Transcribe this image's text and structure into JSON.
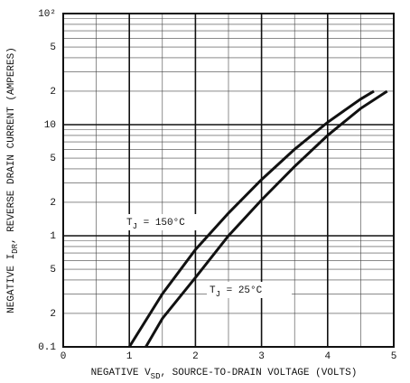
{
  "chart_data": {
    "type": "line",
    "xlabel": [
      "NEGATIVE V",
      "SD",
      ", SOURCE-TO-DRAIN VOLTAGE (VOLTS)"
    ],
    "ylabel": [
      "NEGATIVE I",
      "DR",
      ", REVERSE DRAIN CURRENT (AMPERES)"
    ],
    "log_y": true,
    "xlim": [
      0,
      5
    ],
    "xticks": [
      0,
      1,
      2,
      3,
      4,
      5
    ],
    "xminor": [
      0.5,
      1.5,
      2.5,
      3.5,
      4.5
    ],
    "ylim": [
      0.1,
      100
    ],
    "yticks": [
      0.1,
      {
        "value": 0.2,
        "label": "2"
      },
      {
        "value": 0.5,
        "label": "5"
      },
      1,
      {
        "value": 2,
        "label": "2"
      },
      {
        "value": 5,
        "label": "5"
      },
      10,
      {
        "value": 20,
        "label": "2"
      },
      {
        "value": 50,
        "label": "5"
      },
      {
        "value": 100,
        "label": "10²"
      }
    ],
    "yminor": [
      0.3,
      0.4,
      0.6,
      0.7,
      0.8,
      0.9,
      3,
      4,
      6,
      7,
      8,
      9,
      30,
      40,
      60,
      70,
      80,
      90
    ],
    "color": "#111111",
    "series": [
      {
        "annotation": [
          "T",
          "J",
          " = 150°C"
        ],
        "x": [
          1.0,
          1.5,
          2.0,
          2.5,
          3.0,
          3.5,
          4.0,
          4.5,
          4.7
        ],
        "values": [
          0.1,
          0.3,
          0.75,
          1.6,
          3.2,
          6,
          10.5,
          17,
          20
        ]
      },
      {
        "annotation": [
          "T",
          "J",
          " = 25°C"
        ],
        "x": [
          1.25,
          1.5,
          2.0,
          2.5,
          3.0,
          3.5,
          4.0,
          4.5,
          4.9
        ],
        "values": [
          0.1,
          0.18,
          0.42,
          1.0,
          2.1,
          4.2,
          8,
          14,
          20
        ]
      }
    ]
  }
}
